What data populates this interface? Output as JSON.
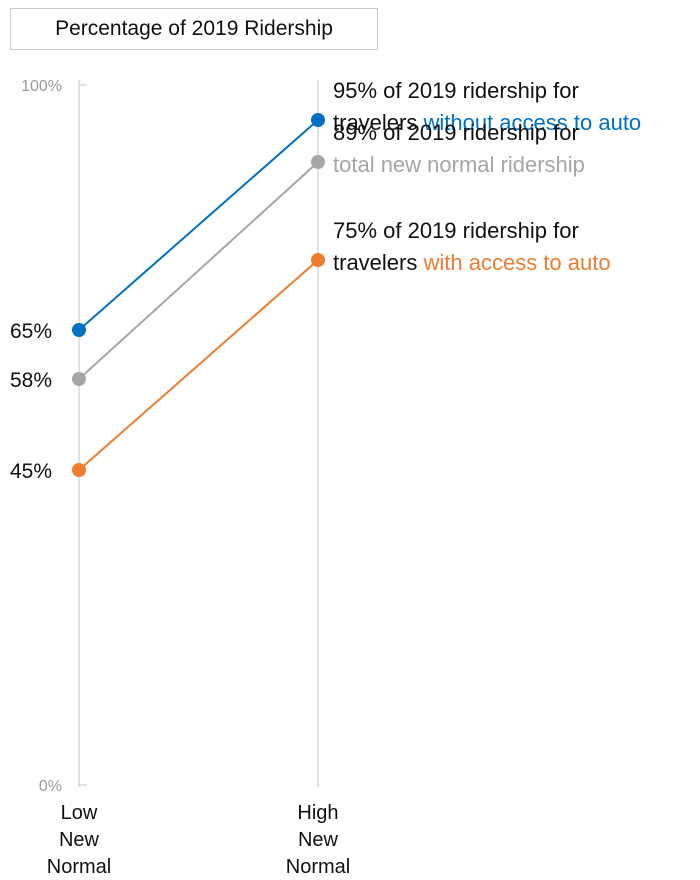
{
  "chart_data": {
    "type": "line",
    "title": "Percentage of 2019 Ridership",
    "categories": [
      [
        "Low",
        "New",
        "Normal"
      ],
      [
        "High",
        "New",
        "Normal"
      ]
    ],
    "y_ticks": [
      "100%",
      "0%"
    ],
    "ylim": [
      0,
      100
    ],
    "grid": false,
    "series": [
      {
        "values": [
          65,
          95
        ],
        "color": "#0070c0",
        "start_label": "65%",
        "annotation": [
          "95% of 2019 ridership for",
          "travelers ",
          "without access to auto"
        ]
      },
      {
        "values": [
          58,
          89
        ],
        "color": "#a6a6a6",
        "start_label": "58%",
        "annotation": [
          "89% of 2019 ridership for",
          "",
          "total new normal ridership"
        ]
      },
      {
        "values": [
          45,
          75
        ],
        "color": "#ed7d31",
        "start_label": "45%",
        "annotation": [
          "75% of 2019 ridership for",
          "travelers ",
          "with access to auto"
        ]
      }
    ]
  }
}
